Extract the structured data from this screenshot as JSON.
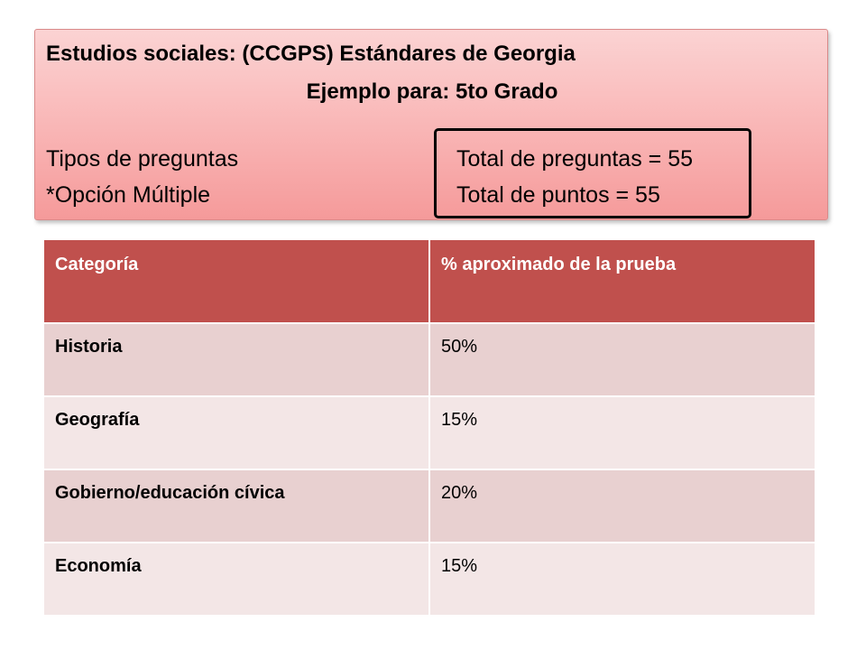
{
  "header": {
    "title": "Estudios sociales: (CCGPS) Estándares de Georgia",
    "subtitle": "Ejemplo para: 5to Grado",
    "question_types_label": "Tipos de preguntas",
    "question_type": "*Opción Múltiple",
    "total_questions": "Total de preguntas = 55",
    "total_points": "Total de puntos = 55"
  },
  "table": {
    "headers": [
      "Categoría",
      "% aproximado de la prueba"
    ],
    "rows": [
      {
        "category": "Historia",
        "percent": "50%"
      },
      {
        "category": "Geografía",
        "percent": "15%"
      },
      {
        "category": "Gobierno/educación cívica",
        "percent": "20%"
      },
      {
        "category": "Economía",
        "percent": "15%"
      }
    ]
  },
  "colors": {
    "header_fill": "#f9b4b4",
    "table_header": "#c0504d",
    "row_odd": "#e8d0d0",
    "row_even": "#f3e6e6"
  }
}
